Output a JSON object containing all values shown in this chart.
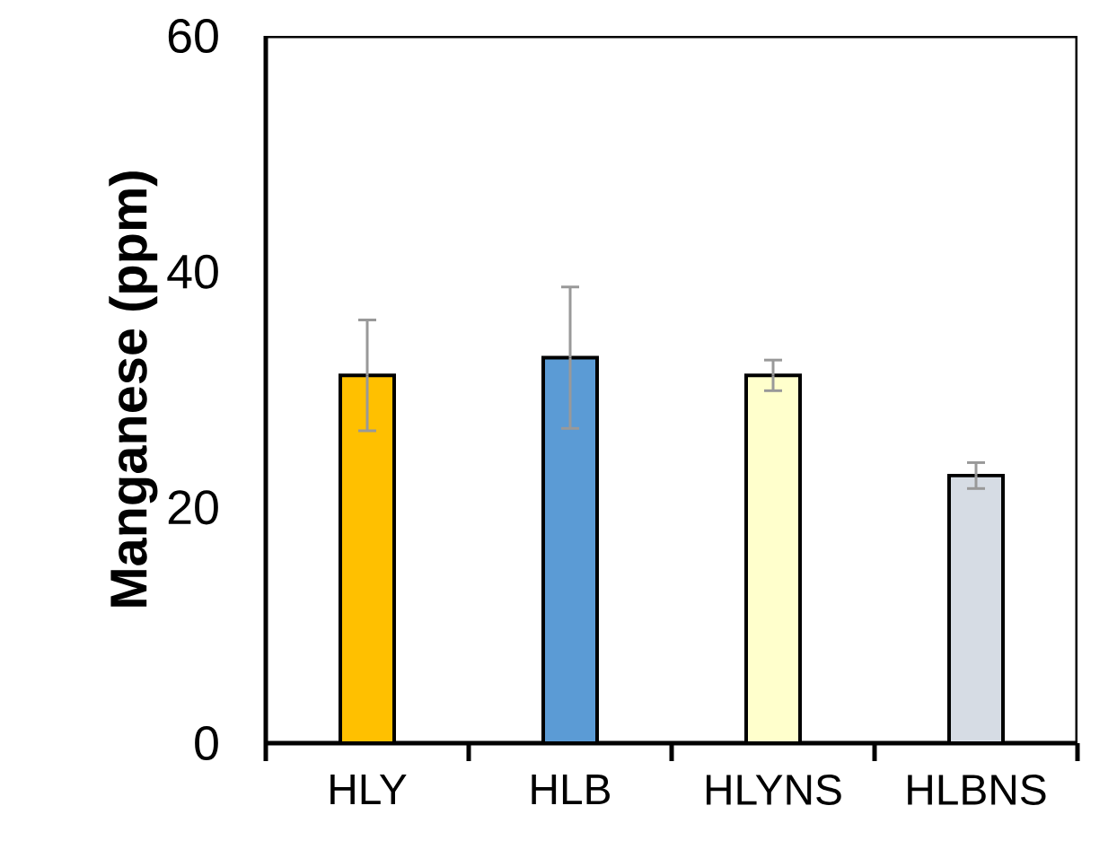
{
  "chart_data": {
    "type": "bar",
    "ylabel": "Manganese (ppm)",
    "categories": [
      "HLY",
      "HLB",
      "HLYNS",
      "HLBNS"
    ],
    "values": [
      31.2,
      32.7,
      31.2,
      22.7
    ],
    "errors": [
      4.7,
      6.0,
      1.3,
      1.1
    ],
    "colors": [
      "#ffc000",
      "#5b9bd5",
      "#ffffcc",
      "#d6dce4"
    ],
    "ylim": [
      0,
      60
    ],
    "yticks": [
      0,
      20,
      40,
      60
    ]
  }
}
